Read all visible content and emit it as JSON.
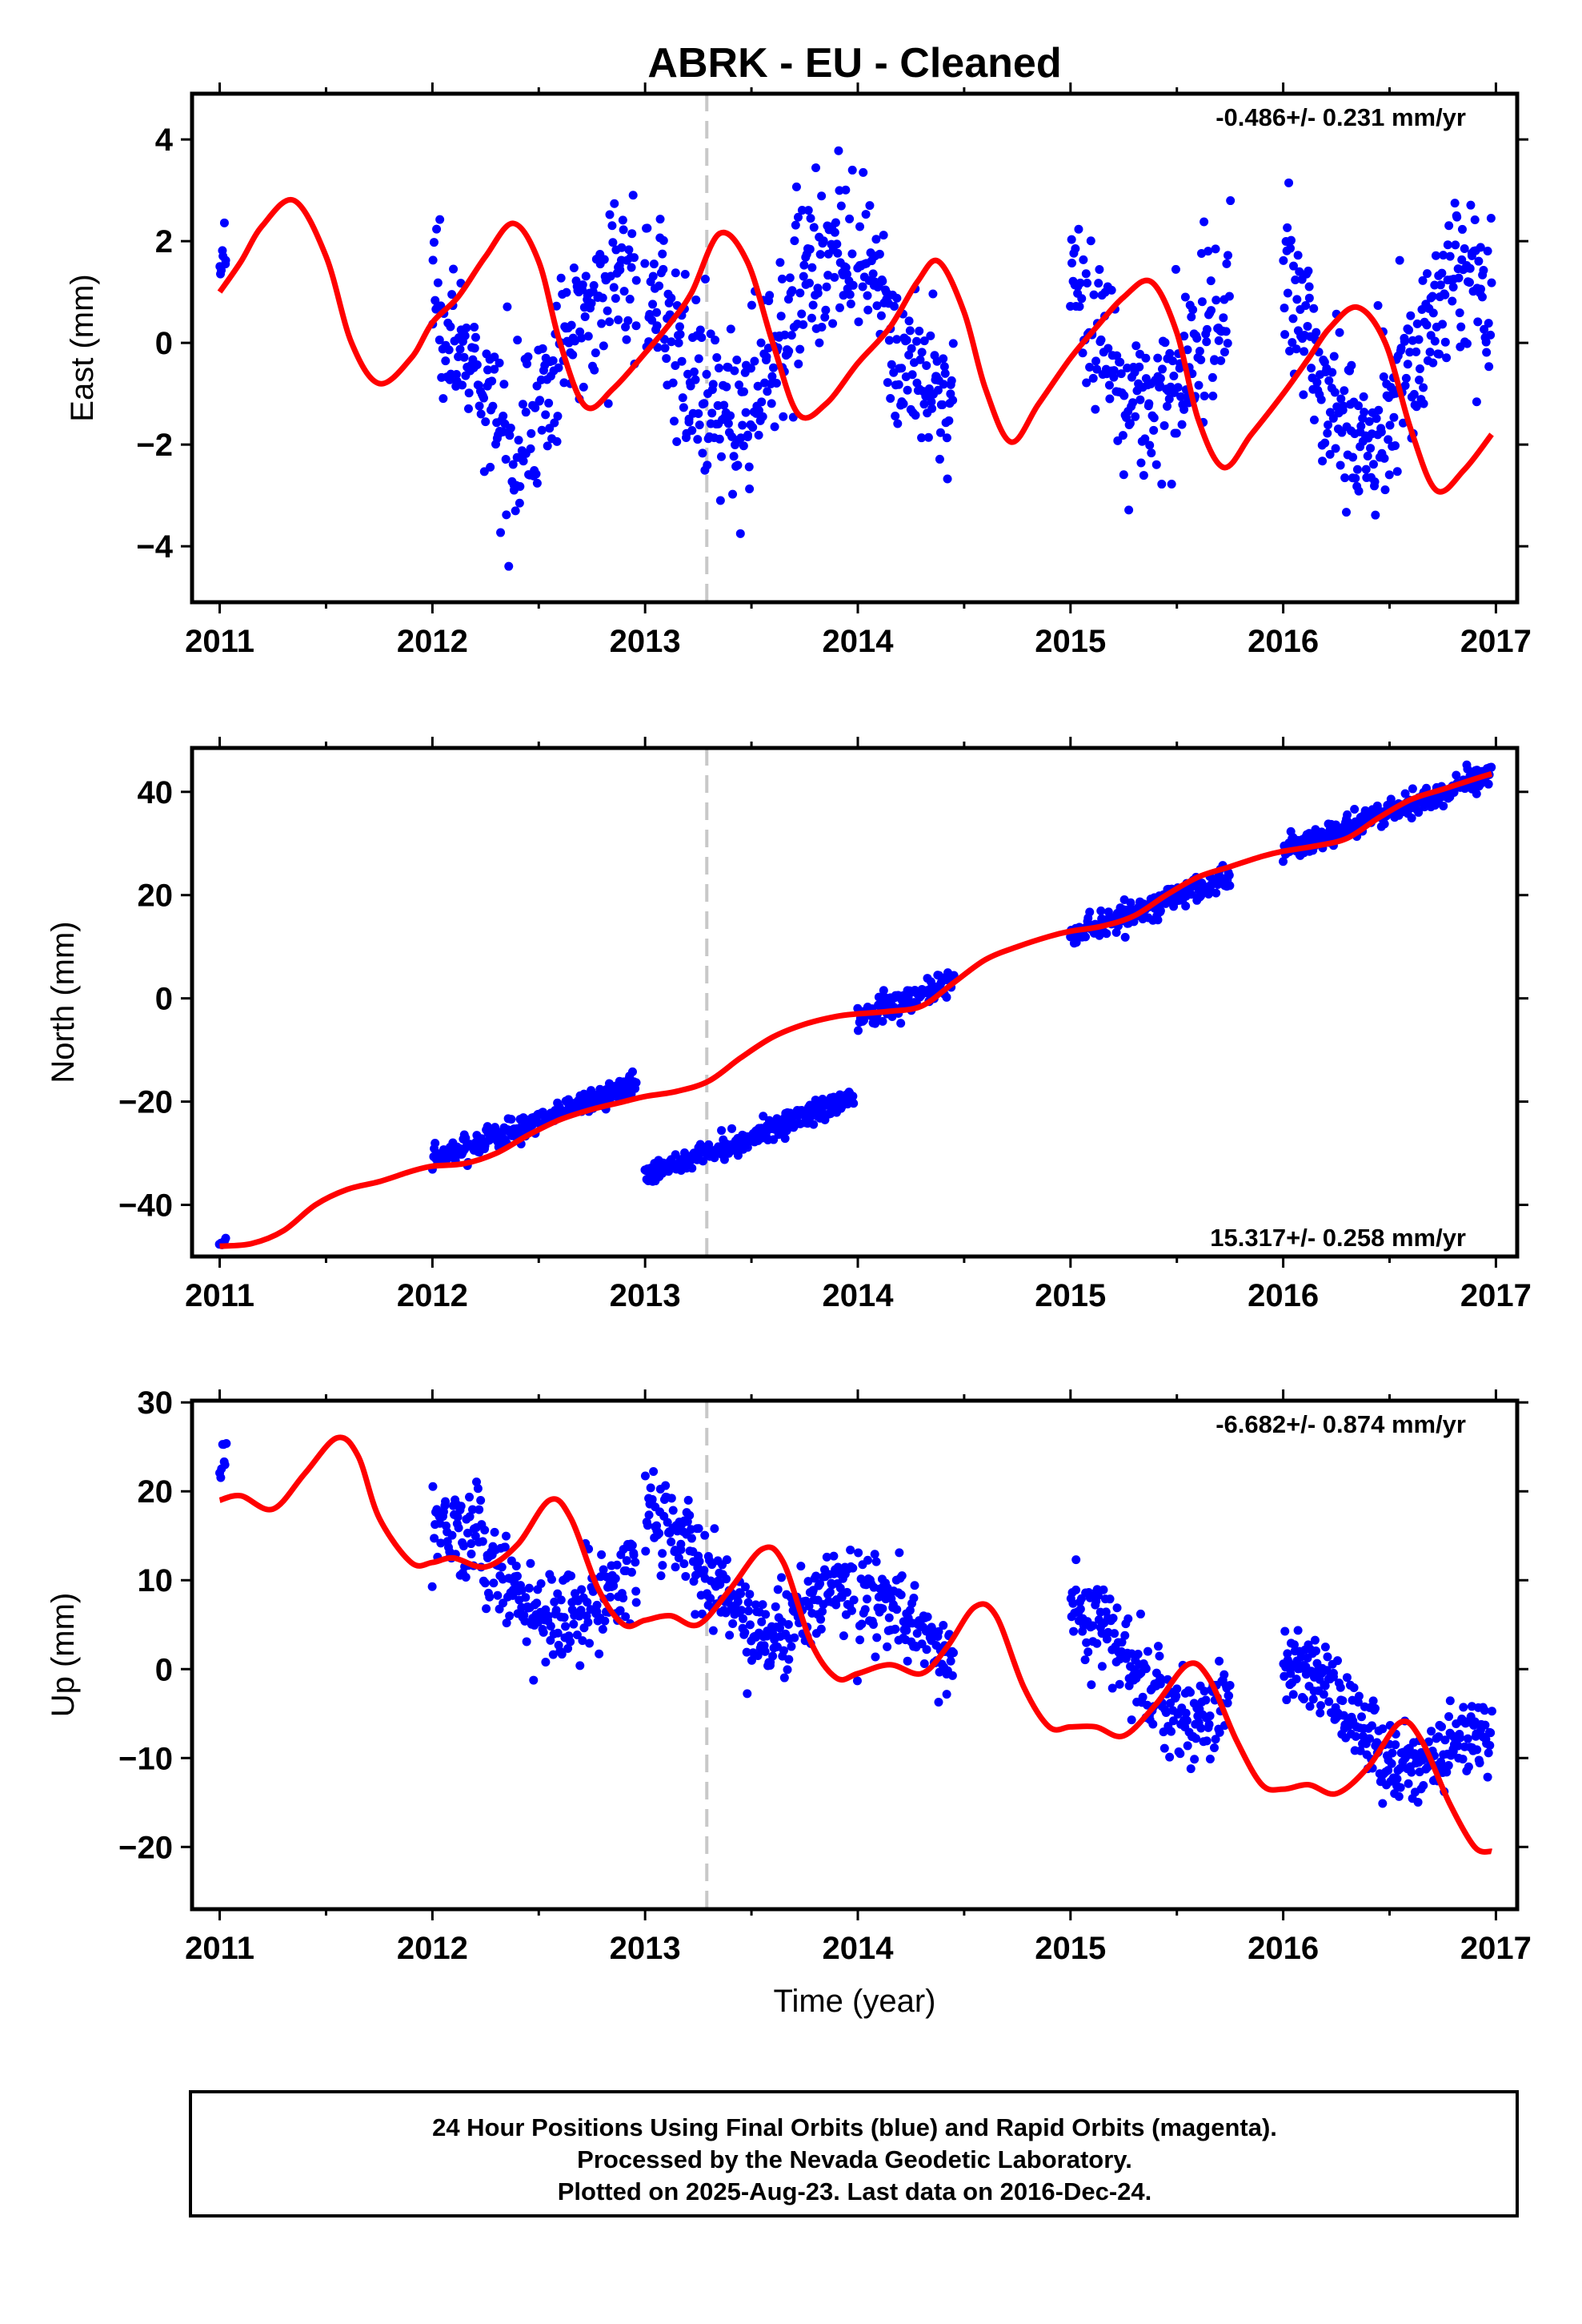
{
  "title": "ABRK  - EU - Cleaned",
  "xlabel": "Time (year)",
  "footer": {
    "line1": "24 Hour Positions Using Final Orbits (blue) and Rapid Orbits (magenta).",
    "line2": "Processed by the Nevada Geodetic Laboratory.",
    "line3": "Plotted on 2025-Aug-23. Last data on 2016-Dec-24."
  },
  "colors": {
    "data": "#0000ff",
    "model": "#ff0000",
    "marker": "#c8c8c8",
    "frame": "#000000"
  },
  "chart_data": [
    {
      "type": "scatter",
      "component": "East",
      "ylabel": "East (mm)",
      "rate_label": "-0.486+/- 0.231 mm/yr",
      "xlim": [
        2010.87,
        2017.1
      ],
      "ylim": [
        -5.1,
        4.9
      ],
      "xticks": [
        2011,
        2012,
        2013,
        2014,
        2015,
        2016,
        2017
      ],
      "yticks": [
        -4,
        -2,
        0,
        2,
        4
      ],
      "marker_line_x": 2013.29,
      "series": [
        {
          "role": "model",
          "points": [
            [
              2011.0,
              1.0
            ],
            [
              2011.1,
              1.6
            ],
            [
              2011.2,
              2.3
            ],
            [
              2011.35,
              2.8
            ],
            [
              2011.5,
              1.7
            ],
            [
              2011.62,
              0.0
            ],
            [
              2011.75,
              -0.8
            ],
            [
              2011.9,
              -0.3
            ],
            [
              2012.0,
              0.4
            ],
            [
              2012.12,
              0.9
            ],
            [
              2012.25,
              1.7
            ],
            [
              2012.38,
              2.35
            ],
            [
              2012.5,
              1.6
            ],
            [
              2012.6,
              0.0
            ],
            [
              2012.72,
              -1.25
            ],
            [
              2012.85,
              -0.9
            ],
            [
              2013.0,
              -0.2
            ],
            [
              2013.12,
              0.4
            ],
            [
              2013.22,
              1.0
            ],
            [
              2013.35,
              2.15
            ],
            [
              2013.48,
              1.6
            ],
            [
              2013.6,
              0.0
            ],
            [
              2013.72,
              -1.4
            ],
            [
              2013.85,
              -1.2
            ],
            [
              2014.0,
              -0.4
            ],
            [
              2014.15,
              0.3
            ],
            [
              2014.28,
              1.2
            ],
            [
              2014.38,
              1.6
            ],
            [
              2014.5,
              0.6
            ],
            [
              2014.6,
              -0.9
            ],
            [
              2014.72,
              -1.95
            ],
            [
              2014.85,
              -1.2
            ],
            [
              2015.0,
              -0.3
            ],
            [
              2015.12,
              0.3
            ],
            [
              2015.25,
              0.9
            ],
            [
              2015.38,
              1.2
            ],
            [
              2015.5,
              0.2
            ],
            [
              2015.6,
              -1.5
            ],
            [
              2015.72,
              -2.45
            ],
            [
              2015.85,
              -1.8
            ],
            [
              2016.0,
              -1.0
            ],
            [
              2016.12,
              -0.3
            ],
            [
              2016.22,
              0.3
            ],
            [
              2016.35,
              0.7
            ],
            [
              2016.48,
              0.0
            ],
            [
              2016.6,
              -1.7
            ],
            [
              2016.72,
              -2.9
            ],
            [
              2016.85,
              -2.5
            ],
            [
              2016.98,
              -1.8
            ]
          ]
        },
        {
          "role": "data",
          "name": "Final Orbits",
          "segments": [
            {
              "x0": 2011.0,
              "x1": 2011.03,
              "n": 8,
              "amp": 1.3,
              "phase": 0.0,
              "trend": -0.486,
              "offset": 1.5,
              "noise": 0.9
            },
            {
              "x0": 2012.0,
              "x1": 2012.96,
              "n": 240,
              "amp": 1.7,
              "phase": -0.62,
              "trend": -0.486,
              "offset": 0.1,
              "noise": 0.75
            },
            {
              "x0": 2013.0,
              "x1": 2013.98,
              "n": 260,
              "amp": 1.8,
              "phase": -0.62,
              "trend": -0.486,
              "offset": 0.4,
              "noise": 0.85
            },
            {
              "x0": 2014.0,
              "x1": 2014.45,
              "n": 120,
              "amp": 1.5,
              "phase": -0.62,
              "trend": -0.486,
              "offset": 0.6,
              "noise": 0.75
            },
            {
              "x0": 2015.0,
              "x1": 2015.75,
              "n": 190,
              "amp": 1.5,
              "phase": -0.62,
              "trend": -0.486,
              "offset": 0.4,
              "noise": 0.8
            },
            {
              "x0": 2016.0,
              "x1": 2016.98,
              "n": 260,
              "amp": 1.7,
              "phase": -0.62,
              "trend": -0.486,
              "offset": 0.1,
              "noise": 0.8
            }
          ]
        }
      ]
    },
    {
      "type": "scatter",
      "component": "North",
      "ylabel": "North (mm)",
      "rate_label": "15.317+/- 0.258 mm/yr",
      "xlim": [
        2010.87,
        2017.1
      ],
      "ylim": [
        -50,
        48.5
      ],
      "xticks": [
        2011,
        2012,
        2013,
        2014,
        2015,
        2016,
        2017
      ],
      "yticks": [
        -40,
        -20,
        0,
        20,
        40
      ],
      "marker_line_x": 2013.29,
      "series": [
        {
          "role": "model",
          "points": [
            [
              2011.0,
              -48.0
            ],
            [
              2011.15,
              -47.5
            ],
            [
              2011.3,
              -45.0
            ],
            [
              2011.45,
              -40.0
            ],
            [
              2011.6,
              -37.0
            ],
            [
              2011.75,
              -35.5
            ],
            [
              2011.9,
              -33.5
            ],
            [
              2012.0,
              -32.5
            ],
            [
              2012.15,
              -32.0
            ],
            [
              2012.3,
              -30.0
            ],
            [
              2012.45,
              -26.5
            ],
            [
              2012.6,
              -23.5
            ],
            [
              2012.75,
              -21.5
            ],
            [
              2012.9,
              -20.0
            ],
            [
              2013.0,
              -19.0
            ],
            [
              2013.15,
              -18.0
            ],
            [
              2013.3,
              -16.0
            ],
            [
              2013.45,
              -11.5
            ],
            [
              2013.6,
              -7.5
            ],
            [
              2013.75,
              -5.0
            ],
            [
              2013.9,
              -3.5
            ],
            [
              2014.0,
              -3.0
            ],
            [
              2014.15,
              -2.5
            ],
            [
              2014.3,
              -1.5
            ],
            [
              2014.45,
              3.0
            ],
            [
              2014.6,
              7.5
            ],
            [
              2014.75,
              10.0
            ],
            [
              2014.9,
              12.0
            ],
            [
              2015.0,
              13.0
            ],
            [
              2015.15,
              14.0
            ],
            [
              2015.3,
              16.0
            ],
            [
              2015.45,
              20.0
            ],
            [
              2015.6,
              23.5
            ],
            [
              2015.75,
              25.5
            ],
            [
              2015.9,
              27.5
            ],
            [
              2016.0,
              28.5
            ],
            [
              2016.15,
              29.5
            ],
            [
              2016.3,
              31.0
            ],
            [
              2016.45,
              35.0
            ],
            [
              2016.6,
              38.5
            ],
            [
              2016.75,
              40.5
            ],
            [
              2016.9,
              42.5
            ],
            [
              2016.98,
              43.5
            ]
          ]
        },
        {
          "role": "data",
          "name": "Final Orbits",
          "segments": [
            {
              "x0": 2011.0,
              "x1": 2011.03,
              "n": 6,
              "amp": 0.0,
              "phase": 0.0,
              "trend": 0.0,
              "offset": -47.5,
              "noise": 0.8
            },
            {
              "x0": 2012.0,
              "x1": 2012.96,
              "n": 240,
              "amp": 0.0,
              "phase": 0.0,
              "trend": 15.317,
              "offset": -31.3,
              "noise": 1.2
            },
            {
              "x0": 2013.0,
              "x1": 2013.98,
              "n": 260,
              "amp": 0.0,
              "phase": 0.0,
              "trend": 15.317,
              "offset": -34.3,
              "noise": 1.2
            },
            {
              "x0": 2014.0,
              "x1": 2014.45,
              "n": 120,
              "amp": 0.0,
              "phase": 0.0,
              "trend": 15.317,
              "offset": -3.8,
              "noise": 1.3
            },
            {
              "x0": 2015.0,
              "x1": 2015.75,
              "n": 190,
              "amp": 0.0,
              "phase": 0.0,
              "trend": 15.317,
              "offset": 12.0,
              "noise": 1.3
            },
            {
              "x0": 2016.0,
              "x1": 2016.98,
              "n": 260,
              "amp": 0.0,
              "phase": 0.0,
              "trend": 15.317,
              "offset": 28.5,
              "noise": 1.2
            }
          ]
        }
      ]
    },
    {
      "type": "scatter",
      "component": "Up",
      "ylabel": "Up (mm)",
      "rate_label": "-6.682+/- 0.874 mm/yr",
      "xlim": [
        2010.87,
        2017.1
      ],
      "ylim": [
        -27,
        30.2
      ],
      "xticks": [
        2011,
        2012,
        2013,
        2014,
        2015,
        2016,
        2017
      ],
      "yticks": [
        -20,
        -10,
        0,
        10,
        20,
        30
      ],
      "marker_line_x": 2013.29,
      "series": [
        {
          "role": "model",
          "points": [
            [
              2011.0,
              19.0
            ],
            [
              2011.1,
              19.5
            ],
            [
              2011.25,
              18.0
            ],
            [
              2011.4,
              22.0
            ],
            [
              2011.55,
              26.0
            ],
            [
              2011.65,
              24.0
            ],
            [
              2011.75,
              17.0
            ],
            [
              2011.9,
              12.0
            ],
            [
              2012.0,
              12.0
            ],
            [
              2012.1,
              12.5
            ],
            [
              2012.25,
              11.5
            ],
            [
              2012.4,
              14.0
            ],
            [
              2012.55,
              19.0
            ],
            [
              2012.65,
              17.0
            ],
            [
              2012.78,
              9.0
            ],
            [
              2012.9,
              5.0
            ],
            [
              2013.0,
              5.5
            ],
            [
              2013.12,
              6.0
            ],
            [
              2013.25,
              5.0
            ],
            [
              2013.4,
              9.0
            ],
            [
              2013.55,
              13.5
            ],
            [
              2013.65,
              12.0
            ],
            [
              2013.78,
              3.0
            ],
            [
              2013.9,
              -1.0
            ],
            [
              2014.0,
              -0.5
            ],
            [
              2014.15,
              0.5
            ],
            [
              2014.3,
              -0.5
            ],
            [
              2014.42,
              2.5
            ],
            [
              2014.55,
              7.0
            ],
            [
              2014.65,
              6.0
            ],
            [
              2014.78,
              -2.0
            ],
            [
              2014.9,
              -6.5
            ],
            [
              2015.0,
              -6.5
            ],
            [
              2015.12,
              -6.5
            ],
            [
              2015.25,
              -7.5
            ],
            [
              2015.4,
              -4.0
            ],
            [
              2015.55,
              0.5
            ],
            [
              2015.65,
              -1.0
            ],
            [
              2015.78,
              -8.0
            ],
            [
              2015.9,
              -13.0
            ],
            [
              2016.0,
              -13.5
            ],
            [
              2016.12,
              -13.0
            ],
            [
              2016.25,
              -14.0
            ],
            [
              2016.4,
              -11.0
            ],
            [
              2016.55,
              -6.0
            ],
            [
              2016.65,
              -8.0
            ],
            [
              2016.78,
              -15.0
            ],
            [
              2016.9,
              -20.0
            ],
            [
              2016.98,
              -20.5
            ]
          ]
        },
        {
          "role": "data",
          "name": "Final Orbits",
          "segments": [
            {
              "x0": 2011.0,
              "x1": 2011.03,
              "n": 8,
              "amp": 2.0,
              "phase": 0.0,
              "trend": 0.0,
              "offset": 23.0,
              "noise": 1.5
            },
            {
              "x0": 2012.0,
              "x1": 2012.96,
              "n": 240,
              "amp": 4.0,
              "phase": -0.8,
              "trend": -6.682,
              "offset": 13.5,
              "noise": 2.8
            },
            {
              "x0": 2013.0,
              "x1": 2013.98,
              "n": 260,
              "amp": 4.5,
              "phase": -0.8,
              "trend": -6.682,
              "offset": 12.8,
              "noise": 2.5
            },
            {
              "x0": 2014.0,
              "x1": 2014.45,
              "n": 120,
              "amp": 2.5,
              "phase": -0.8,
              "trend": -6.682,
              "offset": 6.0,
              "noise": 2.3
            },
            {
              "x0": 2015.0,
              "x1": 2015.75,
              "n": 190,
              "amp": 4.0,
              "phase": -0.8,
              "trend": -6.682,
              "offset": 2.5,
              "noise": 2.6
            },
            {
              "x0": 2016.0,
              "x1": 2016.98,
              "n": 260,
              "amp": 4.0,
              "phase": -0.8,
              "trend": -6.682,
              "offset": -3.2,
              "noise": 2.3
            }
          ]
        }
      ]
    }
  ]
}
